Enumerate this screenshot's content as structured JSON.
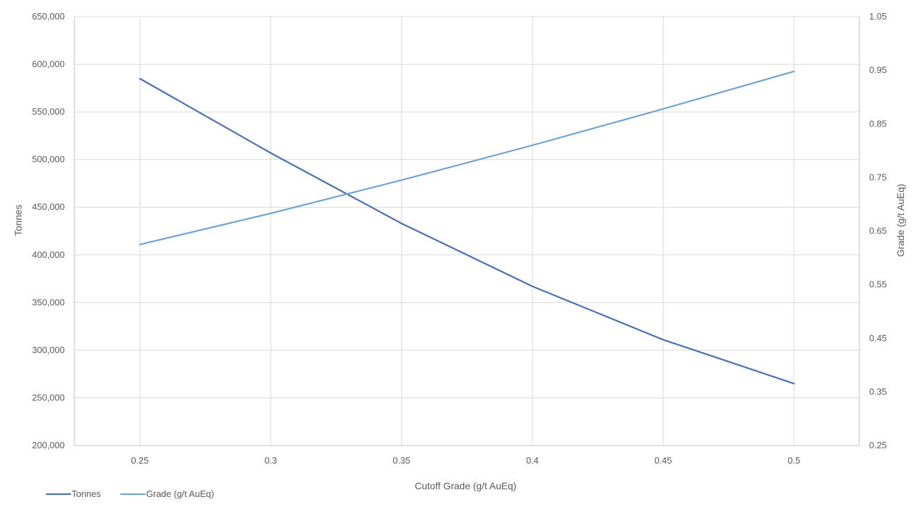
{
  "chart_data": {
    "type": "line",
    "x": [
      0.25,
      0.3,
      0.35,
      0.4,
      0.45,
      0.5
    ],
    "x_tick_labels": [
      "0.25",
      "0.3",
      "0.35",
      "0.4",
      "0.45",
      "0.5"
    ],
    "xlabel": "Cutoff Grade (g/t AuEq)",
    "ylabel_left": "Tonnes",
    "ylabel_right": "Grade (g/t AuEq)",
    "ylim_left": [
      200000,
      650000
    ],
    "ylim_right": [
      0.25,
      1.05
    ],
    "y_left_ticks": [
      "200,000",
      "250,000",
      "300,000",
      "350,000",
      "400,000",
      "450,000",
      "500,000",
      "550,000",
      "600,000",
      "650,000"
    ],
    "y_right_ticks": [
      "0.25",
      "0.35",
      "0.45",
      "0.55",
      "0.65",
      "0.75",
      "0.85",
      "0.95",
      "1.05"
    ],
    "grid": true,
    "legend_position": "bottom-left",
    "series": [
      {
        "name": "Tonnes",
        "axis": "left",
        "color": "#4a6fb0",
        "values": [
          585000,
          507000,
          433000,
          367000,
          311000,
          265000
        ]
      },
      {
        "name": "Grade (g/t AuEq)",
        "axis": "right",
        "color": "#6fa3d3",
        "values": [
          0.625,
          0.683,
          0.745,
          0.81,
          0.878,
          0.948
        ]
      }
    ]
  }
}
